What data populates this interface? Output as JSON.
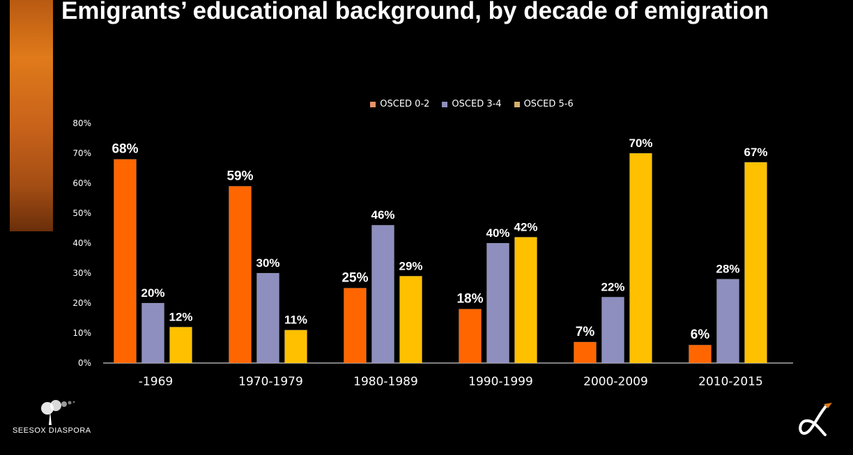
{
  "title": "Emigrants’ educational background, by decade of emigration",
  "colors": {
    "background": "#000000",
    "series": [
      "#ff6600",
      "#8e8fbf",
      "#ffc000"
    ]
  },
  "chart_data": {
    "type": "bar",
    "categories": [
      "-1969",
      "1970-1979",
      "1980-1989",
      "1990-1999",
      "2000-2009",
      "2010-2015"
    ],
    "series": [
      {
        "name": "OSCED 0-2",
        "values": [
          68,
          59,
          25,
          18,
          7,
          6
        ]
      },
      {
        "name": "OSCED 3-4",
        "values": [
          20,
          30,
          46,
          40,
          22,
          28
        ]
      },
      {
        "name": "OSCED 5-6",
        "values": [
          12,
          11,
          29,
          42,
          70,
          67
        ]
      }
    ],
    "ylim": [
      0,
      80
    ],
    "yticks": [
      "0%",
      "10%",
      "20%",
      "30%",
      "40%",
      "50%",
      "60%",
      "70%",
      "80%"
    ],
    "value_suffix": "%",
    "legend_position": "top-center",
    "grid": false
  },
  "logos": {
    "left": "SEESOX DIASPORA",
    "right": "alpha-logo"
  }
}
